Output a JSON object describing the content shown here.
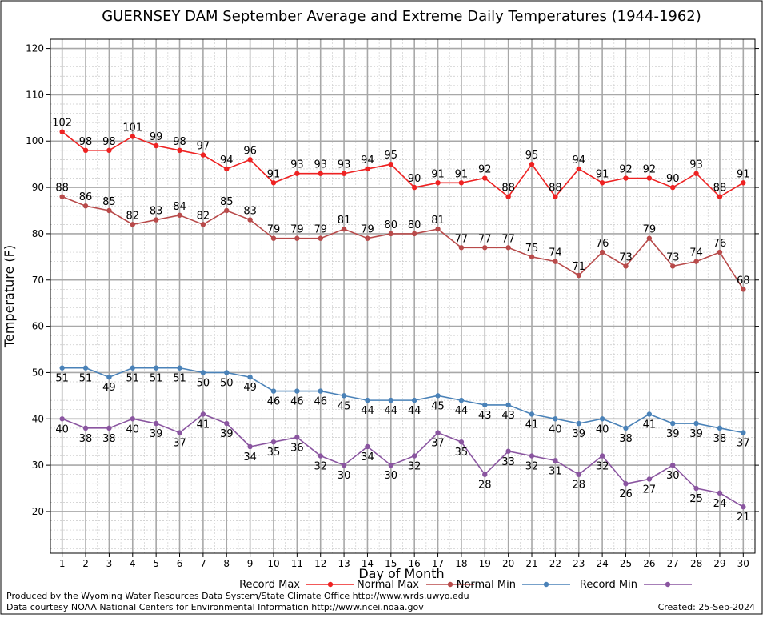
{
  "chart_data": {
    "type": "line",
    "title": "GUERNSEY DAM September Average and Extreme Daily Temperatures (1944-1962)",
    "xlabel": "Day of Month",
    "ylabel": "Temperature (F)",
    "xlim": [
      0.5,
      30.5
    ],
    "ylim": [
      11,
      122
    ],
    "x": [
      1,
      2,
      3,
      4,
      5,
      6,
      7,
      8,
      9,
      10,
      11,
      12,
      13,
      14,
      15,
      16,
      17,
      18,
      19,
      20,
      21,
      22,
      23,
      24,
      25,
      26,
      27,
      28,
      29,
      30
    ],
    "x_ticks": [
      "1",
      "2",
      "3",
      "4",
      "5",
      "6",
      "7",
      "8",
      "9",
      "10",
      "11",
      "12",
      "13",
      "14",
      "15",
      "16",
      "17",
      "18",
      "19",
      "20",
      "21",
      "22",
      "23",
      "24",
      "25",
      "26",
      "27",
      "28",
      "29",
      "30"
    ],
    "y_ticks": [
      20,
      30,
      40,
      50,
      60,
      70,
      80,
      90,
      100,
      110,
      120
    ],
    "grid": true,
    "legend_position": "bottom",
    "series": [
      {
        "name": "Record Max",
        "color": "#ee2222",
        "label_position": "above",
        "values": [
          102,
          98,
          98,
          101,
          99,
          98,
          97,
          94,
          96,
          91,
          93,
          93,
          93,
          94,
          95,
          90,
          91,
          91,
          92,
          88,
          95,
          88,
          94,
          91,
          92,
          92,
          90,
          93,
          88,
          91
        ]
      },
      {
        "name": "Normal Max",
        "color": "#b84a4a",
        "label_position": "above",
        "values": [
          88,
          86,
          85,
          82,
          83,
          84,
          82,
          85,
          83,
          79,
          79,
          79,
          81,
          79,
          80,
          80,
          81,
          77,
          77,
          77,
          75,
          74,
          71,
          76,
          73,
          79,
          73,
          74,
          76,
          68
        ]
      },
      {
        "name": "Normal Min",
        "color": "#4a82b8",
        "label_position": "below",
        "values": [
          51,
          51,
          49,
          51,
          51,
          51,
          50,
          50,
          49,
          46,
          46,
          46,
          45,
          44,
          44,
          44,
          45,
          44,
          43,
          43,
          41,
          40,
          39,
          40,
          38,
          41,
          39,
          39,
          38,
          37
        ]
      },
      {
        "name": "Record Min",
        "color": "#8a55a0",
        "label_position": "below",
        "values": [
          40,
          38,
          38,
          40,
          39,
          37,
          41,
          39,
          34,
          35,
          36,
          32,
          30,
          34,
          30,
          32,
          37,
          35,
          28,
          33,
          32,
          31,
          28,
          32,
          26,
          27,
          30,
          25,
          24,
          21
        ]
      }
    ]
  },
  "footer": {
    "produced_by": "Produced by the Wyoming Water Resources Data System/State Climate Office http://www.wrds.uwyo.edu",
    "courtesy": "Data courtesy NOAA National Centers for Environmental Information http://www.ncei.noaa.gov",
    "created": "Created:  25-Sep-2024"
  }
}
